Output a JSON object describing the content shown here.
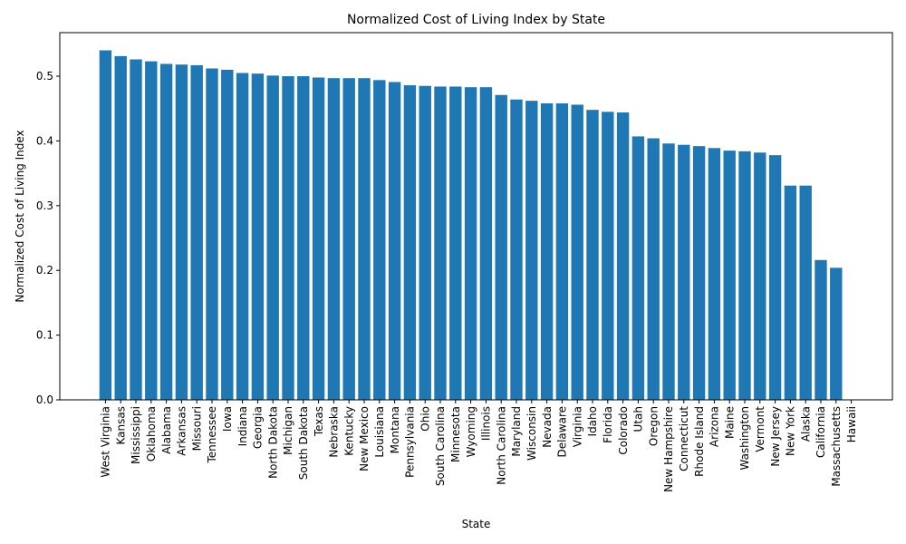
{
  "chart_data": {
    "type": "bar",
    "title": "Normalized Cost of Living Index by State",
    "xlabel": "State",
    "ylabel": "Normalized Cost of Living Index",
    "ylim": [
      0,
      0.5673
    ],
    "yticks": [
      0.0,
      0.1,
      0.2,
      0.3,
      0.4,
      0.5
    ],
    "ytick_labels": [
      "0.0",
      "0.1",
      "0.2",
      "0.3",
      "0.4",
      "0.5"
    ],
    "grid": false,
    "legend": "none",
    "bar_color": "#1f77b4",
    "categories": [
      "West Virginia",
      "Kansas",
      "Mississippi",
      "Oklahoma",
      "Alabama",
      "Arkansas",
      "Missouri",
      "Tennessee",
      "Iowa",
      "Indiana",
      "Georgia",
      "North Dakota",
      "Michigan",
      "South Dakota",
      "Texas",
      "Nebraska",
      "Kentucky",
      "New Mexico",
      "Louisiana",
      "Montana",
      "Pennsylvania",
      "Ohio",
      "South Carolina",
      "Minnesota",
      "Wyoming",
      "Illinois",
      "North Carolina",
      "Maryland",
      "Wisconsin",
      "Nevada",
      "Delaware",
      "Virginia",
      "Idaho",
      "Florida",
      "Colorado",
      "Utah",
      "Oregon",
      "New Hampshire",
      "Connecticut",
      "Rhode Island",
      "Arizona",
      "Maine",
      "Washington",
      "Vermont",
      "New Jersey",
      "New York",
      "Alaska",
      "California",
      "Massachusetts",
      "Hawaii"
    ],
    "values": [
      0.54,
      0.531,
      0.526,
      0.523,
      0.519,
      0.518,
      0.517,
      0.512,
      0.51,
      0.505,
      0.504,
      0.501,
      0.5,
      0.5,
      0.498,
      0.497,
      0.497,
      0.497,
      0.494,
      0.491,
      0.486,
      0.485,
      0.484,
      0.484,
      0.483,
      0.483,
      0.471,
      0.464,
      0.462,
      0.458,
      0.458,
      0.456,
      0.448,
      0.445,
      0.444,
      0.407,
      0.404,
      0.396,
      0.394,
      0.392,
      0.389,
      0.385,
      0.384,
      0.382,
      0.378,
      0.331,
      0.331,
      0.216,
      0.204,
      0.0
    ]
  }
}
